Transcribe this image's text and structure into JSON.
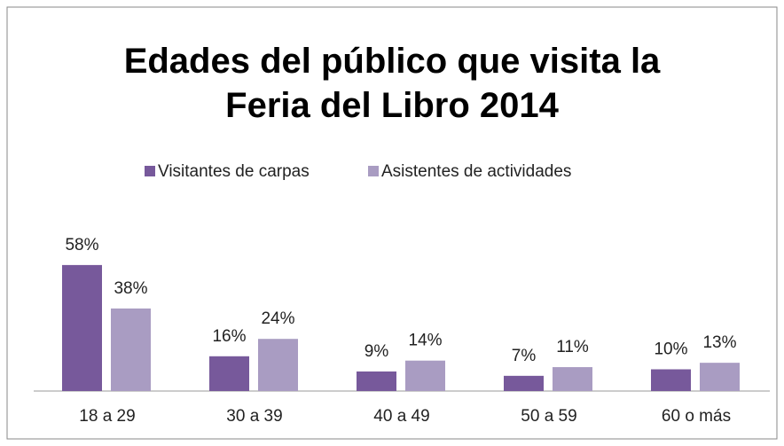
{
  "chart_data": {
    "type": "bar",
    "title": "Edades del público que visita la Feria del Libro 2014",
    "categories": [
      "18 a 29",
      "30 a 39",
      "40 a 49",
      "50 a 59",
      "60 o más"
    ],
    "series": [
      {
        "name": "Visitantes de carpas",
        "color": "#77599b",
        "values": [
          58,
          16,
          9,
          7,
          10
        ],
        "value_labels": [
          "58%",
          "16%",
          "9%",
          "7%",
          "10%"
        ]
      },
      {
        "name": "Asistentes de actividades",
        "color": "#a99cc2",
        "values": [
          38,
          24,
          14,
          11,
          13
        ],
        "value_labels": [
          "38%",
          "24%",
          "14%",
          "11%",
          "13%"
        ]
      }
    ],
    "legend": "top"
  }
}
